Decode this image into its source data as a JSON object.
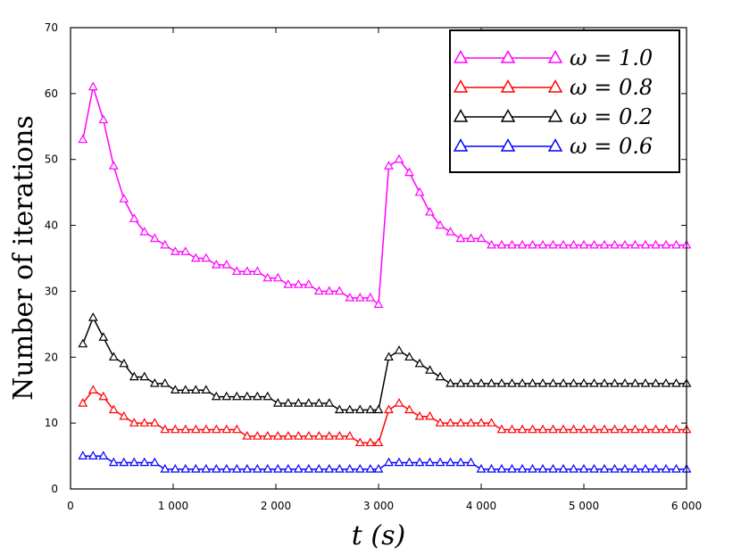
{
  "chart_data": {
    "type": "line",
    "title": "",
    "xlabel": "t (s)",
    "ylabel": "Number of iterations",
    "xlim": [
      0,
      6000
    ],
    "ylim": [
      0,
      70
    ],
    "xticks": [
      0,
      1000,
      2000,
      3000,
      4000,
      5000,
      6000
    ],
    "xtick_labels": [
      "0",
      "1 000",
      "2 000",
      "3 000",
      "4 000",
      "5 000",
      "6 000"
    ],
    "yticks": [
      0,
      10,
      20,
      30,
      40,
      50,
      60,
      70
    ],
    "ytick_labels": [
      "0",
      "10",
      "20",
      "30",
      "40",
      "50",
      "60",
      "70"
    ],
    "grid": false,
    "legend_position": "top-right",
    "marker": "open-triangle",
    "x": [
      120,
      220,
      320,
      420,
      520,
      620,
      720,
      820,
      920,
      1020,
      1120,
      1220,
      1320,
      1420,
      1520,
      1620,
      1720,
      1820,
      1920,
      2020,
      2120,
      2220,
      2320,
      2420,
      2520,
      2620,
      2720,
      2820,
      2920,
      3000,
      3100,
      3200,
      3300,
      3400,
      3500,
      3600,
      3700,
      3800,
      3900,
      4000,
      4100,
      4200,
      4300,
      4400,
      4500,
      4600,
      4700,
      4800,
      4900,
      5000,
      5100,
      5200,
      5300,
      5400,
      5500,
      5600,
      5700,
      5800,
      5900,
      6000
    ],
    "series": [
      {
        "name": "ω = 1.0",
        "color": "#ff00ff",
        "values": [
          53,
          61,
          56,
          49,
          44,
          41,
          39,
          38,
          37,
          36,
          36,
          35,
          35,
          34,
          34,
          33,
          33,
          33,
          32,
          32,
          31,
          31,
          31,
          30,
          30,
          30,
          29,
          29,
          29,
          28,
          49,
          50,
          48,
          45,
          42,
          40,
          39,
          38,
          38,
          38,
          37,
          37,
          37,
          37,
          37,
          37,
          37,
          37,
          37,
          37,
          37,
          37,
          37,
          37,
          37,
          37,
          37,
          37,
          37,
          37
        ]
      },
      {
        "name": "ω = 0.8",
        "color": "#ff0000",
        "values": [
          13,
          15,
          14,
          12,
          11,
          10,
          10,
          10,
          9,
          9,
          9,
          9,
          9,
          9,
          9,
          9,
          8,
          8,
          8,
          8,
          8,
          8,
          8,
          8,
          8,
          8,
          8,
          7,
          7,
          7,
          12,
          13,
          12,
          11,
          11,
          10,
          10,
          10,
          10,
          10,
          10,
          9,
          9,
          9,
          9,
          9,
          9,
          9,
          9,
          9,
          9,
          9,
          9,
          9,
          9,
          9,
          9,
          9,
          9,
          9
        ]
      },
      {
        "name": "ω = 0.2",
        "color": "#000000",
        "values": [
          22,
          26,
          23,
          20,
          19,
          17,
          17,
          16,
          16,
          15,
          15,
          15,
          15,
          14,
          14,
          14,
          14,
          14,
          14,
          13,
          13,
          13,
          13,
          13,
          13,
          12,
          12,
          12,
          12,
          12,
          20,
          21,
          20,
          19,
          18,
          17,
          16,
          16,
          16,
          16,
          16,
          16,
          16,
          16,
          16,
          16,
          16,
          16,
          16,
          16,
          16,
          16,
          16,
          16,
          16,
          16,
          16,
          16,
          16,
          16
        ]
      },
      {
        "name": "ω = 0.6",
        "color": "#0000ff",
        "values": [
          5,
          5,
          5,
          4,
          4,
          4,
          4,
          4,
          3,
          3,
          3,
          3,
          3,
          3,
          3,
          3,
          3,
          3,
          3,
          3,
          3,
          3,
          3,
          3,
          3,
          3,
          3,
          3,
          3,
          3,
          4,
          4,
          4,
          4,
          4,
          4,
          4,
          4,
          4,
          3,
          3,
          3,
          3,
          3,
          3,
          3,
          3,
          3,
          3,
          3,
          3,
          3,
          3,
          3,
          3,
          3,
          3,
          3,
          3,
          3
        ]
      }
    ]
  }
}
